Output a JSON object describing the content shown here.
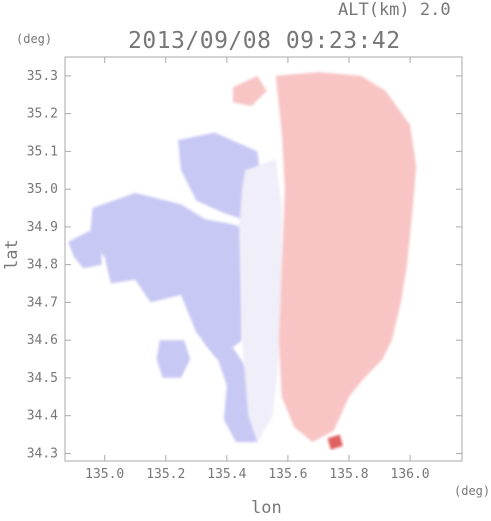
{
  "header": {
    "altitude_label": "ALT(km) 2.0",
    "timestamp": "2013/09/08 09:23:42"
  },
  "chart_data": {
    "type": "heatmap",
    "title": "2013/09/08 09:23:42",
    "xlabel": "lon",
    "ylabel": "lat",
    "x_unit": "(deg)",
    "y_unit": "(deg)",
    "xlim": [
      134.87,
      136.17
    ],
    "ylim": [
      34.28,
      35.35
    ],
    "x_ticks": [
      "135.0",
      "135.2",
      "135.4",
      "135.6",
      "135.8",
      "136.0"
    ],
    "x_tick_values": [
      135.0,
      135.2,
      135.4,
      135.6,
      135.8,
      136.0
    ],
    "y_ticks": [
      "34.3",
      "34.4",
      "34.5",
      "34.6",
      "34.7",
      "34.8",
      "34.9",
      "35.0",
      "35.1",
      "35.2",
      "35.3"
    ],
    "y_tick_values": [
      34.3,
      34.4,
      34.5,
      34.6,
      34.7,
      34.8,
      34.9,
      35.0,
      35.1,
      35.2,
      35.3
    ],
    "colors": {
      "negative": "#c8c8f4",
      "near_zero": "#f0eef8",
      "positive": "#f8c4c4",
      "strong_positive": "#e06060",
      "axis": "#aaaaaa"
    },
    "regions": [
      {
        "name": "west-negative",
        "sign": "negative",
        "polygon": [
          [
            134.96,
            34.95
          ],
          [
            135.1,
            34.99
          ],
          [
            135.25,
            34.96
          ],
          [
            135.33,
            34.92
          ],
          [
            135.4,
            34.91
          ],
          [
            135.45,
            34.9
          ],
          [
            135.45,
            34.6
          ],
          [
            135.37,
            34.55
          ],
          [
            135.3,
            34.62
          ],
          [
            135.25,
            34.72
          ],
          [
            135.15,
            34.7
          ],
          [
            135.1,
            34.76
          ],
          [
            135.02,
            34.75
          ],
          [
            135.0,
            34.82
          ],
          [
            134.95,
            34.86
          ]
        ]
      },
      {
        "name": "west-negative-upper",
        "sign": "negative",
        "polygon": [
          [
            135.24,
            35.13
          ],
          [
            135.36,
            35.15
          ],
          [
            135.5,
            35.1
          ],
          [
            135.52,
            34.97
          ],
          [
            135.45,
            34.92
          ],
          [
            135.38,
            34.94
          ],
          [
            135.3,
            34.97
          ],
          [
            135.25,
            35.05
          ]
        ]
      },
      {
        "name": "west-negative-lower",
        "sign": "negative",
        "polygon": [
          [
            135.32,
            34.6
          ],
          [
            135.42,
            34.58
          ],
          [
            135.47,
            34.52
          ],
          [
            135.5,
            34.4
          ],
          [
            135.5,
            34.33
          ],
          [
            135.43,
            34.33
          ],
          [
            135.39,
            34.39
          ],
          [
            135.4,
            34.48
          ],
          [
            135.37,
            34.55
          ]
        ]
      },
      {
        "name": "far-west-patch",
        "sign": "negative",
        "polygon": [
          [
            134.88,
            34.86
          ],
          [
            134.95,
            34.89
          ],
          [
            134.99,
            34.86
          ],
          [
            134.99,
            34.8
          ],
          [
            134.93,
            34.79
          ],
          [
            134.9,
            34.82
          ]
        ]
      },
      {
        "name": "southwest-patch",
        "sign": "negative",
        "polygon": [
          [
            135.18,
            34.6
          ],
          [
            135.26,
            34.6
          ],
          [
            135.28,
            34.55
          ],
          [
            135.25,
            34.5
          ],
          [
            135.19,
            34.5
          ],
          [
            135.17,
            34.55
          ]
        ]
      },
      {
        "name": "center-neutral",
        "sign": "near_zero",
        "polygon": [
          [
            135.46,
            35.05
          ],
          [
            135.56,
            35.08
          ],
          [
            135.58,
            34.95
          ],
          [
            135.58,
            34.75
          ],
          [
            135.57,
            34.55
          ],
          [
            135.55,
            34.4
          ],
          [
            135.5,
            34.33
          ],
          [
            135.47,
            34.4
          ],
          [
            135.45,
            34.6
          ],
          [
            135.44,
            34.9
          ],
          [
            135.45,
            35.0
          ]
        ]
      },
      {
        "name": "east-positive",
        "sign": "positive",
        "polygon": [
          [
            135.56,
            35.3
          ],
          [
            135.7,
            35.31
          ],
          [
            135.84,
            35.3
          ],
          [
            135.92,
            35.26
          ],
          [
            136.0,
            35.17
          ],
          [
            136.02,
            35.06
          ],
          [
            136.01,
            34.96
          ],
          [
            135.99,
            34.8
          ],
          [
            135.97,
            34.7
          ],
          [
            135.94,
            34.6
          ],
          [
            135.91,
            34.55
          ],
          [
            135.85,
            34.5
          ],
          [
            135.8,
            34.45
          ],
          [
            135.75,
            34.36
          ],
          [
            135.68,
            34.33
          ],
          [
            135.62,
            34.37
          ],
          [
            135.58,
            34.45
          ],
          [
            135.57,
            34.6
          ],
          [
            135.58,
            34.8
          ],
          [
            135.59,
            35.0
          ],
          [
            135.58,
            35.15
          ]
        ]
      },
      {
        "name": "north-patch",
        "sign": "positive",
        "polygon": [
          [
            135.42,
            35.27
          ],
          [
            135.5,
            35.3
          ],
          [
            135.53,
            35.26
          ],
          [
            135.48,
            35.22
          ],
          [
            135.42,
            35.23
          ]
        ]
      },
      {
        "name": "south-hotspot",
        "sign": "strong_positive",
        "polygon": [
          [
            135.73,
            34.34
          ],
          [
            135.77,
            34.35
          ],
          [
            135.78,
            34.32
          ],
          [
            135.74,
            34.31
          ]
        ]
      }
    ]
  }
}
